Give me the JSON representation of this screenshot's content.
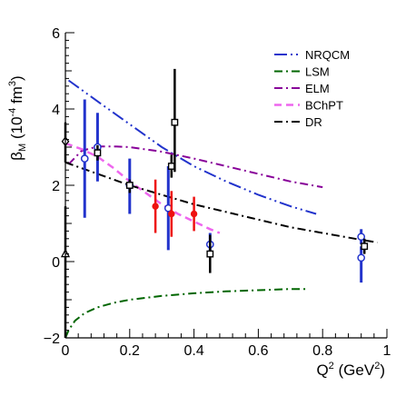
{
  "chart_data": {
    "type": "scatter",
    "xlabel": {
      "base": "Q",
      "sup": "2",
      "unit_open": " (GeV",
      "unit_sup": "2",
      "unit_close": ")"
    },
    "ylabel": {
      "base": "β",
      "sub": "M",
      "unit_open": " (10",
      "unit_sup": "-4",
      "unit_space": " fm",
      "unit_sup2": "3",
      "unit_close": ")"
    },
    "xlim": [
      0,
      1
    ],
    "ylim": [
      -2,
      6
    ],
    "xticks": [
      {
        "v": 0,
        "label": "0"
      },
      {
        "v": 0.2,
        "label": "0.2"
      },
      {
        "v": 0.4,
        "label": "0.4"
      },
      {
        "v": 0.6,
        "label": "0.6"
      },
      {
        "v": 0.8,
        "label": "0.8"
      },
      {
        "v": 1,
        "label": "1"
      }
    ],
    "yticks": [
      {
        "v": -2,
        "label": "−2"
      },
      {
        "v": 0,
        "label": "0"
      },
      {
        "v": 2,
        "label": "2"
      },
      {
        "v": 4,
        "label": "4"
      },
      {
        "v": 6,
        "label": "6"
      }
    ],
    "legend_position": "top-right",
    "curves": [
      {
        "name": "NRQCM",
        "color": "#2233cc",
        "dash": "14 4 2 4 2 4",
        "width": 2,
        "x": [
          0.01,
          0.1,
          0.2,
          0.3,
          0.4,
          0.5,
          0.6,
          0.7,
          0.78
        ],
        "y": [
          4.75,
          4.2,
          3.6,
          3.0,
          2.5,
          2.1,
          1.75,
          1.45,
          1.25
        ]
      },
      {
        "name": "LSM",
        "color": "#006600",
        "dash": "9 4 2 4",
        "width": 2,
        "x": [
          0.0,
          0.01,
          0.03,
          0.06,
          0.1,
          0.15,
          0.2,
          0.3,
          0.4,
          0.5,
          0.6,
          0.7,
          0.75
        ],
        "y": [
          -2.0,
          -1.8,
          -1.55,
          -1.35,
          -1.2,
          -1.08,
          -1.0,
          -0.9,
          -0.83,
          -0.78,
          -0.75,
          -0.72,
          -0.72
        ]
      },
      {
        "name": "ELM",
        "color": "#880099",
        "dash": "9 4 2 4",
        "width": 2,
        "x": [
          0.01,
          0.05,
          0.1,
          0.15,
          0.2,
          0.3,
          0.4,
          0.5,
          0.6,
          0.7,
          0.8
        ],
        "y": [
          2.55,
          2.9,
          3.02,
          3.02,
          3.0,
          2.88,
          2.7,
          2.5,
          2.3,
          2.1,
          1.95
        ]
      },
      {
        "name": "BChPT",
        "color": "#ee66ee",
        "dash": "8 5",
        "width": 2.5,
        "x": [
          0.0,
          0.05,
          0.1,
          0.15,
          0.2,
          0.25,
          0.3,
          0.35,
          0.4,
          0.45,
          0.48
        ],
        "y": [
          3.1,
          2.95,
          2.75,
          2.45,
          2.1,
          1.8,
          1.5,
          1.25,
          1.05,
          0.85,
          0.75
        ]
      },
      {
        "name": "DR",
        "color": "#000000",
        "dash": "9 4 2 4",
        "width": 2,
        "x": [
          0.0,
          0.1,
          0.2,
          0.3,
          0.4,
          0.5,
          0.6,
          0.7,
          0.8,
          0.9,
          0.97
        ],
        "y": [
          2.6,
          2.3,
          2.0,
          1.75,
          1.5,
          1.3,
          1.1,
          0.9,
          0.75,
          0.6,
          0.5
        ]
      }
    ],
    "points": [
      {
        "series": "black",
        "marker": "diamond",
        "x": 0.0,
        "y": 3.15,
        "err_lo": 0.55,
        "err_hi": 0.5,
        "color": "#000000"
      },
      {
        "series": "black",
        "marker": "triangle",
        "x": 0.0,
        "y": 0.2,
        "err_lo": 2.2,
        "err_hi": 1.25,
        "color": "#000000"
      },
      {
        "series": "blue",
        "marker": "circle",
        "x": 0.06,
        "y": 2.7,
        "err_lo": 1.55,
        "err_hi": 1.55,
        "color": "#2233cc"
      },
      {
        "series": "blue",
        "marker": "circle",
        "x": 0.1,
        "y": 3.0,
        "err_lo": 0.9,
        "err_hi": 0.9,
        "color": "#2233cc"
      },
      {
        "series": "blue",
        "marker": "circle",
        "x": 0.2,
        "y": 2.0,
        "err_lo": 0.75,
        "err_hi": 0.7,
        "color": "#2233cc"
      },
      {
        "series": "blue",
        "marker": "circle",
        "x": 0.32,
        "y": 1.4,
        "err_lo": 1.1,
        "err_hi": 1.1,
        "color": "#2233cc"
      },
      {
        "series": "blue",
        "marker": "circle",
        "x": 0.45,
        "y": 0.45,
        "err_lo": 0.3,
        "err_hi": 0.3,
        "color": "#2233cc"
      },
      {
        "series": "blue",
        "marker": "circle",
        "x": 0.92,
        "y": 0.65,
        "err_lo": 0.2,
        "err_hi": 0.2,
        "color": "#2233cc"
      },
      {
        "series": "blue",
        "marker": "circle",
        "x": 0.92,
        "y": 0.1,
        "err_lo": 0.65,
        "err_hi": 0.3,
        "color": "#2233cc"
      },
      {
        "series": "black-square",
        "marker": "square",
        "x": 0.1,
        "y": 2.85,
        "err_lo": 0.2,
        "err_hi": 0.2,
        "color": "#000000"
      },
      {
        "series": "black-square",
        "marker": "square",
        "x": 0.2,
        "y": 2.0,
        "err_lo": 0.2,
        "err_hi": 0.15,
        "color": "#000000"
      },
      {
        "series": "black-square",
        "marker": "square",
        "x": 0.33,
        "y": 2.5,
        "err_lo": 0.3,
        "err_hi": 0.3,
        "color": "#000000"
      },
      {
        "series": "black-square",
        "marker": "square",
        "x": 0.34,
        "y": 3.65,
        "err_lo": 1.3,
        "err_hi": 1.4,
        "color": "#000000"
      },
      {
        "series": "black-square",
        "marker": "square",
        "x": 0.45,
        "y": 0.2,
        "err_lo": 0.5,
        "err_hi": 0.5,
        "color": "#000000"
      },
      {
        "series": "black-square",
        "marker": "square",
        "x": 0.93,
        "y": 0.4,
        "err_lo": 0.2,
        "err_hi": 0.2,
        "color": "#000000"
      },
      {
        "series": "red",
        "marker": "dot",
        "x": 0.28,
        "y": 1.45,
        "err_lo": 0.7,
        "err_hi": 0.7,
        "color": "#ee1111"
      },
      {
        "series": "red",
        "marker": "dot",
        "x": 0.33,
        "y": 1.25,
        "err_lo": 0.6,
        "err_hi": 0.6,
        "color": "#ee1111"
      },
      {
        "series": "red",
        "marker": "dot",
        "x": 0.4,
        "y": 1.25,
        "err_lo": 0.45,
        "err_hi": 0.45,
        "color": "#ee1111"
      }
    ]
  }
}
